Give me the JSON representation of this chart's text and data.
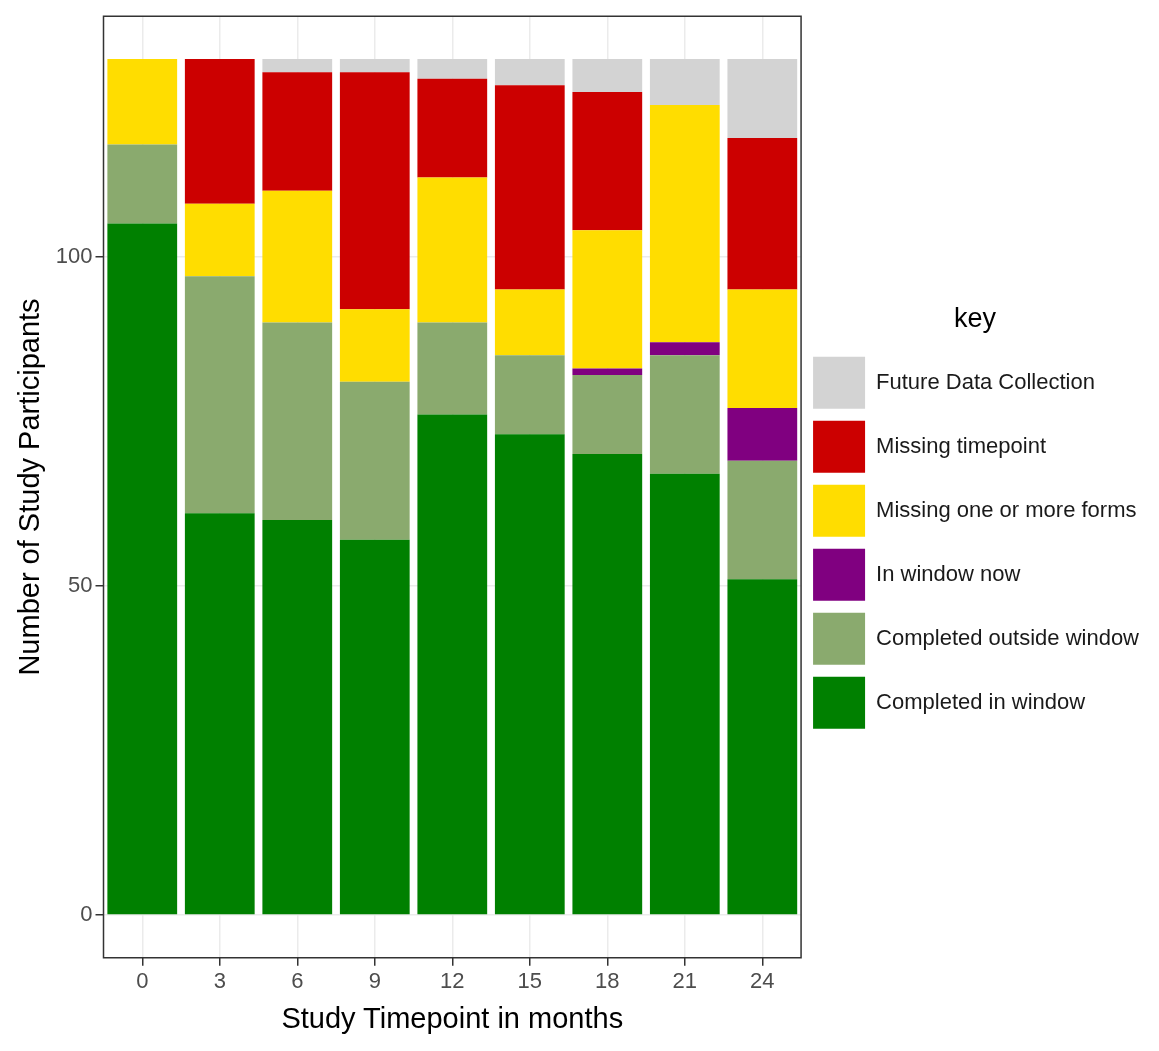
{
  "chart_data": {
    "type": "bar",
    "stacked": true,
    "xlabel": "Study Timepoint in months",
    "ylabel": "Number of Study Participants",
    "legend_title": "key",
    "legend": "right",
    "grid": true,
    "categories": [
      "0",
      "3",
      "6",
      "9",
      "12",
      "15",
      "18",
      "21",
      "24"
    ],
    "ylim": [
      -6.5,
      136.5
    ],
    "yticks": [
      0,
      50,
      100
    ],
    "series": [
      {
        "name": "Completed in window",
        "color": "#008000",
        "values": [
          105,
          61,
          60,
          57,
          76,
          73,
          70,
          67,
          51
        ]
      },
      {
        "name": "Completed outside window",
        "color": "#8aaa6e",
        "values": [
          12,
          36,
          30,
          24,
          14,
          12,
          12,
          18,
          18
        ]
      },
      {
        "name": "In window now",
        "color": "#800080",
        "values": [
          0,
          0,
          0,
          0,
          0,
          0,
          1,
          2,
          8
        ]
      },
      {
        "name": "Missing one or more forms",
        "color": "#ffdd00",
        "values": [
          13,
          11,
          20,
          11,
          22,
          10,
          21,
          36,
          18
        ]
      },
      {
        "name": "Missing timepoint",
        "color": "#cc0000",
        "values": [
          0,
          22,
          18,
          36,
          15,
          31,
          21,
          0,
          23
        ]
      },
      {
        "name": "Future Data Collection",
        "color": "#d3d3d3",
        "values": [
          0,
          0,
          2,
          2,
          3,
          4,
          5,
          7,
          12
        ]
      }
    ]
  }
}
